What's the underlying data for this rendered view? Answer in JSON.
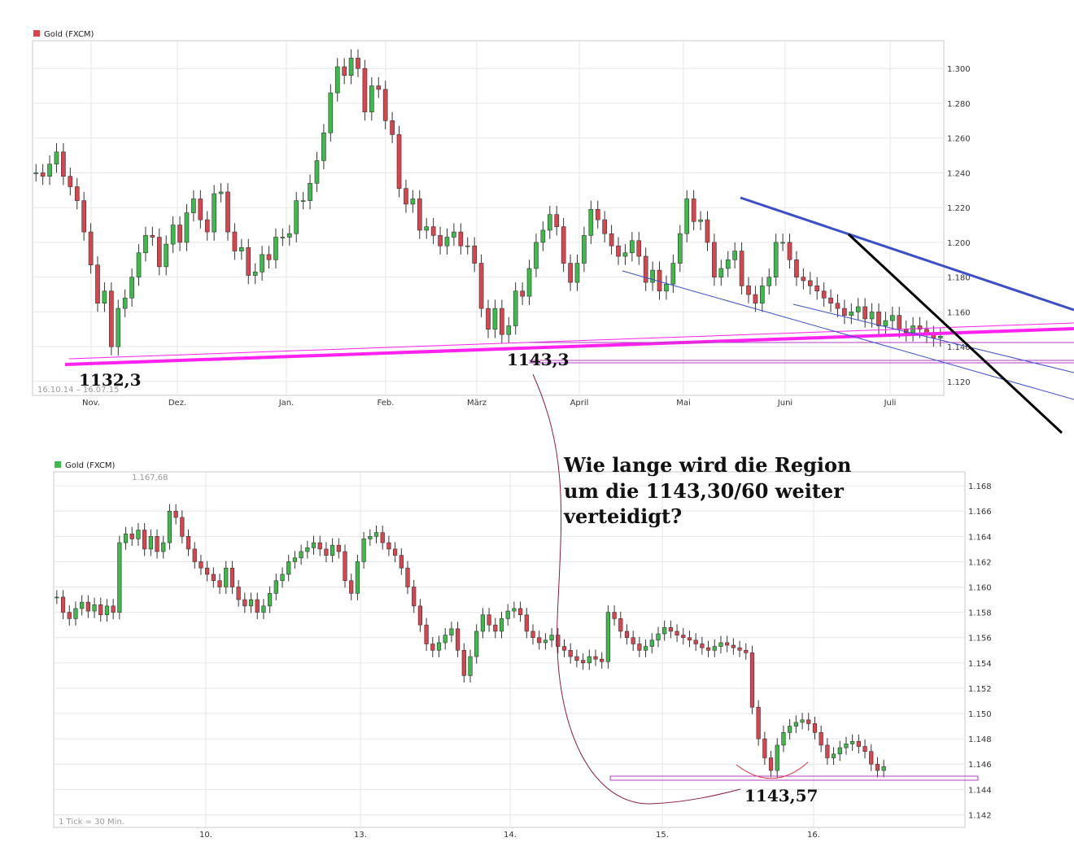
{
  "chart_data": [
    {
      "type": "candlestick",
      "legend": "Gold (FXCM)",
      "legend_color": "#d9454f",
      "date_range": "16.10.14 – 16.07.15",
      "y_ticks": [
        "1.300",
        "1.280",
        "1.260",
        "1.240",
        "1.220",
        "1.200",
        "1.180",
        "1.160",
        "1.140",
        "1.120"
      ],
      "x_labels": [
        "Nov.",
        "Dez.",
        "Jan.",
        "Feb.",
        "März",
        "April",
        "Mai",
        "Juni",
        "Juli"
      ],
      "ylim": [
        1112,
        1316
      ],
      "closes": [
        1240,
        1238,
        1245,
        1252,
        1238,
        1232,
        1224,
        1206,
        1187,
        1165,
        1172,
        1140,
        1162,
        1168,
        1180,
        1194,
        1204,
        1203,
        1186,
        1199,
        1210,
        1200,
        1217,
        1225,
        1213,
        1206,
        1228,
        1229,
        1206,
        1195,
        1197,
        1181,
        1183,
        1193,
        1190,
        1203,
        1203,
        1205,
        1224,
        1224,
        1234,
        1247,
        1263,
        1286,
        1301,
        1296,
        1306,
        1300,
        1275,
        1290,
        1288,
        1270,
        1262,
        1231,
        1222,
        1225,
        1207,
        1209,
        1204,
        1198,
        1203,
        1206,
        1198,
        1198,
        1188,
        1162,
        1150,
        1162,
        1147,
        1152,
        1172,
        1169,
        1185,
        1200,
        1207,
        1216,
        1209,
        1188,
        1177,
        1188,
        1204,
        1219,
        1213,
        1205,
        1198,
        1192,
        1194,
        1201,
        1192,
        1177,
        1184,
        1172,
        1176,
        1188,
        1205,
        1225,
        1212,
        1213,
        1200,
        1180,
        1185,
        1190,
        1195,
        1175,
        1170,
        1165,
        1175,
        1180,
        1200,
        1200,
        1190,
        1180,
        1178,
        1175,
        1172,
        1168,
        1165,
        1162,
        1158,
        1160,
        1163,
        1156,
        1160,
        1152,
        1155,
        1158,
        1150,
        1148,
        1152,
        1150,
        1147,
        1145,
        1146
      ],
      "annotations": [
        "1132,3",
        "1143,3"
      ],
      "annotation_values": [
        1132.3,
        1143.3
      ]
    },
    {
      "type": "candlestick",
      "legend": "Gold (FXCM)",
      "legend_color": "#3dbb4a",
      "max_label": "1.167,68",
      "interval": "1 Tick = 30 Min.",
      "y_ticks": [
        "1.168",
        "1.166",
        "1.164",
        "1.162",
        "1.160",
        "1.158",
        "1.156",
        "1.154",
        "1.152",
        "1.150",
        "1.148",
        "1.146",
        "1.144",
        "1.142"
      ],
      "x_labels": [
        "10.",
        "13.",
        "14.",
        "15.",
        "16."
      ],
      "ylim": [
        1141.0,
        1169.1
      ],
      "closes": [
        1159.2,
        1158.0,
        1157.5,
        1158.3,
        1158.8,
        1158.1,
        1158.6,
        1157.8,
        1158.5,
        1158.0,
        1163.5,
        1164.2,
        1163.8,
        1164.5,
        1163.0,
        1164.0,
        1162.8,
        1163.5,
        1166.0,
        1165.5,
        1164.0,
        1163.0,
        1162.0,
        1161.5,
        1161.0,
        1160.5,
        1160.0,
        1161.5,
        1160.0,
        1159.0,
        1158.5,
        1159.0,
        1158.0,
        1158.5,
        1159.5,
        1160.5,
        1161.0,
        1162.0,
        1162.3,
        1162.8,
        1163.1,
        1163.5,
        1163.0,
        1162.5,
        1163.3,
        1162.8,
        1160.5,
        1159.5,
        1162.0,
        1163.8,
        1164.0,
        1164.3,
        1163.5,
        1163.0,
        1162.5,
        1161.5,
        1160.0,
        1158.5,
        1157.0,
        1155.5,
        1155.0,
        1155.6,
        1156.2,
        1156.7,
        1155.0,
        1153.0,
        1154.5,
        1156.5,
        1157.8,
        1157.0,
        1156.5,
        1157.5,
        1158.1,
        1158.3,
        1157.8,
        1156.5,
        1156.0,
        1155.6,
        1155.8,
        1156.2,
        1155.3,
        1155.0,
        1154.5,
        1154.2,
        1154.0,
        1154.5,
        1154.3,
        1154.1,
        1158.0,
        1157.5,
        1156.5,
        1156.0,
        1155.5,
        1155.0,
        1155.3,
        1155.8,
        1156.3,
        1156.8,
        1156.5,
        1156.2,
        1156.0,
        1155.8,
        1155.5,
        1155.2,
        1155.0,
        1155.3,
        1155.6,
        1155.4,
        1155.2,
        1155.0,
        1154.8,
        1150.5,
        1148.0,
        1146.5,
        1145.5,
        1147.5,
        1148.5,
        1149.0,
        1149.3,
        1149.5,
        1149.2,
        1148.5,
        1147.5,
        1146.5,
        1146.8,
        1147.3,
        1147.6,
        1147.8,
        1147.4,
        1147.0,
        1146.0,
        1145.5,
        1145.8
      ],
      "annotations": [
        "1143,57"
      ],
      "annotation_values": [
        1143.57
      ]
    }
  ],
  "question_lines": [
    "Wie lange wird die Region",
    "um die 1143,30/60 weiter",
    "verteidigt?"
  ],
  "colors": {
    "up": "#3dbb4a",
    "down": "#d9454f",
    "support": "#ff22ee",
    "trend_blue": "#3a4fc8",
    "trend_black": "#000000",
    "connector": "#8c1b3a"
  }
}
